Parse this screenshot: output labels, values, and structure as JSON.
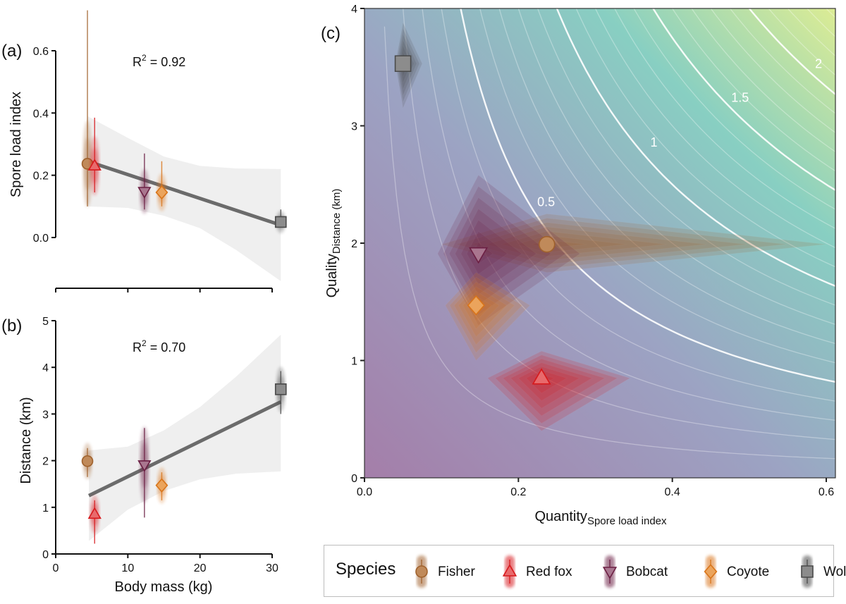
{
  "species": [
    {
      "name": "Fisher",
      "shape": "circle",
      "color": "#a0622d",
      "fill": "#c08a5a",
      "body_mass_kg": 4.4,
      "spore_load_index": 0.237,
      "distance_km": 1.99
    },
    {
      "name": "Red fox",
      "shape": "triangle-up",
      "color": "#d7191c",
      "fill": "#e86a6c",
      "body_mass_kg": 5.4,
      "spore_load_index": 0.23,
      "distance_km": 0.85
    },
    {
      "name": "Bobcat",
      "shape": "triangle-down",
      "color": "#6b1f43",
      "fill": "#a9768f",
      "body_mass_kg": 12.3,
      "spore_load_index": 0.148,
      "distance_km": 1.91
    },
    {
      "name": "Coyote",
      "shape": "diamond",
      "color": "#d9751a",
      "fill": "#eba45c",
      "body_mass_kg": 14.7,
      "spore_load_index": 0.145,
      "distance_km": 1.47
    },
    {
      "name": "Wolf",
      "shape": "square",
      "color": "#4a4a4a",
      "fill": "#8c8c8c",
      "body_mass_kg": 31.2,
      "spore_load_index": 0.05,
      "distance_km": 3.53
    }
  ],
  "legend": {
    "title": "Species"
  },
  "chart_data": [
    {
      "id": "a",
      "type": "scatter",
      "panel_label": "(a)",
      "annotation": "R² = 0.92",
      "annotation_main": "R",
      "annotation_sup": "2",
      "annotation_rest": " = 0.92",
      "xlabel": "",
      "ylabel": "Spore load index",
      "xlim": [
        0,
        31.5
      ],
      "ylim": [
        0,
        0.6
      ],
      "xticks": [
        0,
        10,
        20,
        30
      ],
      "xtick_labels": [
        "",
        "",
        "",
        ""
      ],
      "yticks": [
        0.0,
        0.2,
        0.4,
        0.6
      ],
      "ytick_labels": [
        "0.0",
        "0.2",
        "0.4",
        "0.6"
      ],
      "series_field": "spore_load_index",
      "intervals": {
        "Fisher": [
          0.1,
          0.73
        ],
        "Red fox": [
          0.145,
          0.385
        ],
        "Bobcat": [
          0.09,
          0.27
        ],
        "Coyote": [
          0.1,
          0.245
        ],
        "Wolf": [
          0.035,
          0.09
        ]
      },
      "fit_line": {
        "x": [
          4.4,
          31.2
        ],
        "y": [
          0.245,
          0.04
        ]
      },
      "ci_band": {
        "x": [
          4.4,
          10,
          15,
          20,
          25,
          31.2
        ],
        "lower": [
          0.1,
          0.095,
          0.07,
          0.03,
          -0.04,
          -0.14
        ],
        "upper": [
          0.39,
          0.32,
          0.26,
          0.23,
          0.222,
          0.22
        ]
      }
    },
    {
      "id": "b",
      "type": "scatter",
      "panel_label": "(b)",
      "annotation_main": "R",
      "annotation_sup": "2",
      "annotation_rest": " = 0.70",
      "xlabel": "Body mass (kg)",
      "ylabel": "Distance (km)",
      "xlim": [
        0,
        31.5
      ],
      "ylim": [
        0,
        5
      ],
      "xticks": [
        0,
        10,
        20,
        30
      ],
      "xtick_labels": [
        "0",
        "10",
        "20",
        "30"
      ],
      "yticks": [
        0,
        1,
        2,
        3,
        4,
        5
      ],
      "ytick_labels": [
        "0",
        "1",
        "2",
        "3",
        "4",
        "5"
      ],
      "series_field": "distance_km",
      "intervals": {
        "Fisher": [
          1.65,
          2.27
        ],
        "Red fox": [
          0.22,
          1.15
        ],
        "Bobcat": [
          0.78,
          2.7
        ],
        "Coyote": [
          1.15,
          1.75
        ],
        "Wolf": [
          3.0,
          3.92
        ]
      },
      "fit_line": {
        "x": [
          4.6,
          31.2
        ],
        "y": [
          1.25,
          3.26
        ]
      },
      "ci_band": {
        "x": [
          4.6,
          10,
          15,
          20,
          25,
          31.2
        ],
        "lower": [
          0.28,
          0.95,
          1.35,
          1.6,
          1.72,
          1.77
        ],
        "upper": [
          2.22,
          2.3,
          2.65,
          3.15,
          3.8,
          4.7
        ]
      }
    },
    {
      "id": "c",
      "type": "scatter",
      "panel_label": "(c)",
      "xlabel_main": "Quantity",
      "xlabel_sub": "Spore load index",
      "ylabel_main": "Quality",
      "ylabel_sub": "Distance (km)",
      "xlim": [
        0,
        0.62
      ],
      "ylim": [
        0,
        4
      ],
      "xticks": [
        0.0,
        0.2,
        0.4,
        0.6
      ],
      "xtick_labels": [
        "0.0",
        "0.2",
        "0.4",
        "0.6"
      ],
      "yticks": [
        0,
        1,
        2,
        3,
        4
      ],
      "ytick_labels": [
        "0",
        "1",
        "2",
        "3",
        "4"
      ],
      "background": "contour of quantity × quality",
      "colorscale": [
        "#a77ea8",
        "#9ea3c4",
        "#8ecfc0",
        "#d8ec96"
      ],
      "contour_levels_major": [
        0.5,
        1,
        1.5,
        2
      ],
      "contour_labels": [
        "0.5",
        "1",
        "1.5",
        "2"
      ],
      "contour_minor_step": 0.1,
      "error_shapes": {
        "Fisher": {
          "x": [
            0.1,
            0.6
          ],
          "y": [
            1.75,
            2.25
          ]
        },
        "Red fox": {
          "x": [
            0.16,
            0.345
          ],
          "y": [
            0.4,
            1.08
          ]
        },
        "Bobcat": {
          "x": [
            0.095,
            0.28
          ],
          "y": [
            1.3,
            2.58
          ]
        },
        "Coyote": {
          "x": [
            0.105,
            0.215
          ],
          "y": [
            1.0,
            1.75
          ]
        },
        "Wolf": {
          "x": [
            0.04,
            0.075
          ],
          "y": [
            3.15,
            3.88
          ]
        }
      }
    }
  ]
}
